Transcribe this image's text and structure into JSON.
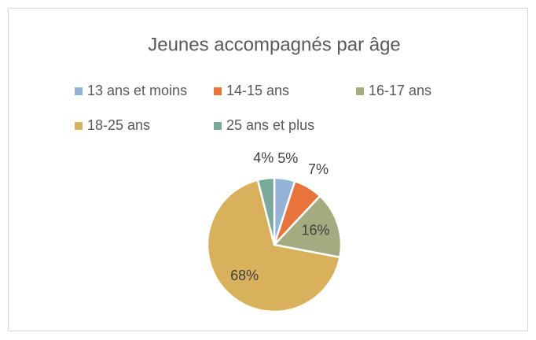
{
  "chart_data": {
    "type": "pie",
    "title": "Jeunes accompagnés par âge",
    "categories": [
      "13 ans et moins",
      "14-15 ans",
      "16-17 ans",
      "18-25 ans",
      "25 ans et plus"
    ],
    "values": [
      5,
      7,
      16,
      68,
      4
    ],
    "value_labels": [
      "5%",
      "7%",
      "16%",
      "68%",
      "4%"
    ],
    "colors": [
      "#95b3d7",
      "#e8743b",
      "#a5ab81",
      "#d9b15d",
      "#7aa99a"
    ],
    "legend": "top"
  }
}
